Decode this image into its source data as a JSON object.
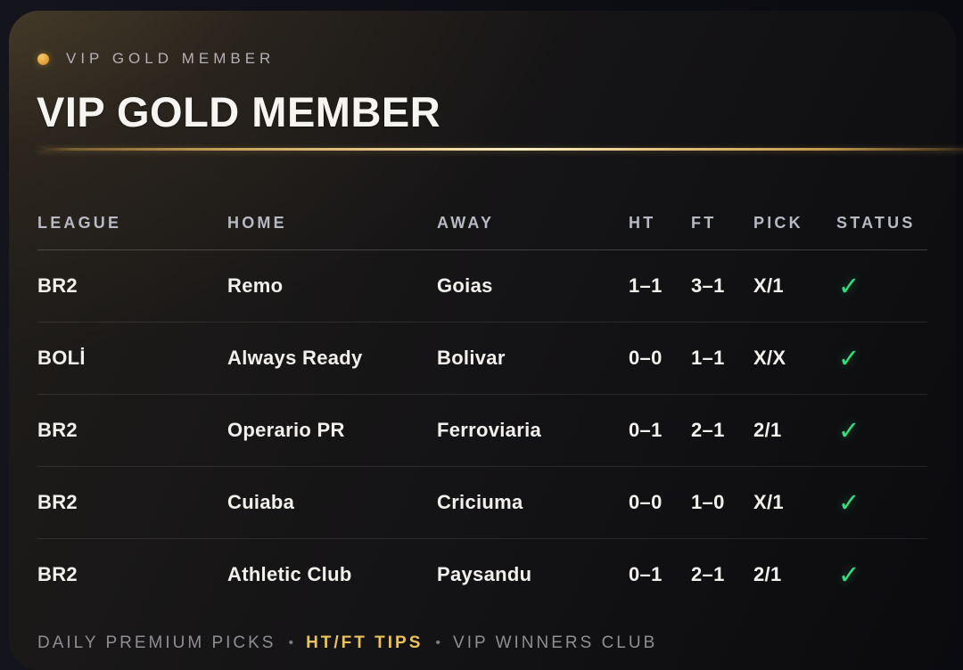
{
  "header": {
    "eyebrow": "VIP GOLD MEMBER",
    "title": "VIP GOLD MEMBER"
  },
  "table": {
    "columns": [
      "LEAGUE",
      "HOME",
      "AWAY",
      "HT",
      "FT",
      "PICK",
      "STATUS"
    ],
    "rows": [
      {
        "league": "BR2",
        "home": "Remo",
        "away": "Goias",
        "ht": "1–1",
        "ft": "3–1",
        "pick": "X/1",
        "status": "win"
      },
      {
        "league": "BOLİ",
        "home": "Always Ready",
        "away": "Bolivar",
        "ht": "0–0",
        "ft": "1–1",
        "pick": "X/X",
        "status": "win"
      },
      {
        "league": "BR2",
        "home": "Operario PR",
        "away": "Ferroviaria",
        "ht": "0–1",
        "ft": "2–1",
        "pick": "2/1",
        "status": "win"
      },
      {
        "league": "BR2",
        "home": "Cuiaba",
        "away": "Criciuma",
        "ht": "0–0",
        "ft": "1–0",
        "pick": "X/1",
        "status": "win"
      },
      {
        "league": "BR2",
        "home": "Athletic Club",
        "away": "Paysandu",
        "ht": "0–1",
        "ft": "2–1",
        "pick": "2/1",
        "status": "win"
      }
    ],
    "win_icon": "✓"
  },
  "footer": {
    "items": [
      {
        "label": "DAILY PREMIUM PICKS",
        "accent": false
      },
      {
        "label": "HT/FT TIPS",
        "accent": true
      },
      {
        "label": "VIP WINNERS CLUB",
        "accent": false
      }
    ],
    "separator": "•"
  },
  "colors": {
    "gold_accent": "#e8b44c",
    "gold_line_bright": "#f7ecc4",
    "success_green": "#2ee07e",
    "title_white": "#f7f5f1",
    "muted_gray": "#908e92"
  }
}
